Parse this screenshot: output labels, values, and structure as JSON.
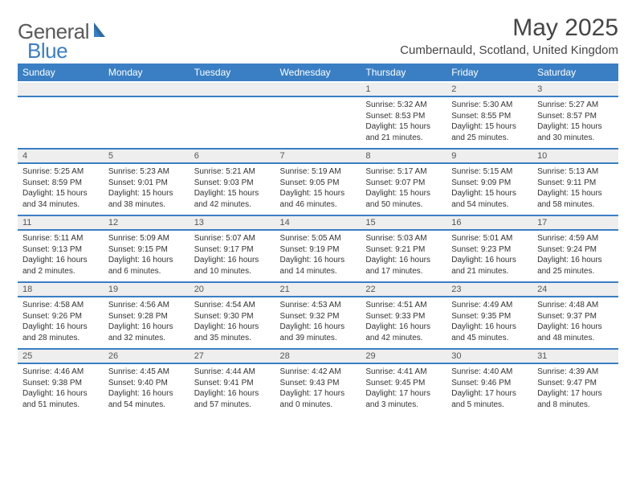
{
  "logo": {
    "text1": "General",
    "text2": "Blue"
  },
  "title": "May 2025",
  "location": "Cumbernauld, Scotland, United Kingdom",
  "colors": {
    "brand": "#3a7fc4",
    "header_bg": "#3a7fc4",
    "stripe": "#eeeeee",
    "text": "#333333",
    "title": "#454545"
  },
  "weekdays": [
    "Sunday",
    "Monday",
    "Tuesday",
    "Wednesday",
    "Thursday",
    "Friday",
    "Saturday"
  ],
  "grid": [
    [
      null,
      null,
      null,
      null,
      {
        "n": "1",
        "sr": "5:32 AM",
        "ss": "8:53 PM",
        "dl": "15 hours and 21 minutes."
      },
      {
        "n": "2",
        "sr": "5:30 AM",
        "ss": "8:55 PM",
        "dl": "15 hours and 25 minutes."
      },
      {
        "n": "3",
        "sr": "5:27 AM",
        "ss": "8:57 PM",
        "dl": "15 hours and 30 minutes."
      }
    ],
    [
      {
        "n": "4",
        "sr": "5:25 AM",
        "ss": "8:59 PM",
        "dl": "15 hours and 34 minutes."
      },
      {
        "n": "5",
        "sr": "5:23 AM",
        "ss": "9:01 PM",
        "dl": "15 hours and 38 minutes."
      },
      {
        "n": "6",
        "sr": "5:21 AM",
        "ss": "9:03 PM",
        "dl": "15 hours and 42 minutes."
      },
      {
        "n": "7",
        "sr": "5:19 AM",
        "ss": "9:05 PM",
        "dl": "15 hours and 46 minutes."
      },
      {
        "n": "8",
        "sr": "5:17 AM",
        "ss": "9:07 PM",
        "dl": "15 hours and 50 minutes."
      },
      {
        "n": "9",
        "sr": "5:15 AM",
        "ss": "9:09 PM",
        "dl": "15 hours and 54 minutes."
      },
      {
        "n": "10",
        "sr": "5:13 AM",
        "ss": "9:11 PM",
        "dl": "15 hours and 58 minutes."
      }
    ],
    [
      {
        "n": "11",
        "sr": "5:11 AM",
        "ss": "9:13 PM",
        "dl": "16 hours and 2 minutes."
      },
      {
        "n": "12",
        "sr": "5:09 AM",
        "ss": "9:15 PM",
        "dl": "16 hours and 6 minutes."
      },
      {
        "n": "13",
        "sr": "5:07 AM",
        "ss": "9:17 PM",
        "dl": "16 hours and 10 minutes."
      },
      {
        "n": "14",
        "sr": "5:05 AM",
        "ss": "9:19 PM",
        "dl": "16 hours and 14 minutes."
      },
      {
        "n": "15",
        "sr": "5:03 AM",
        "ss": "9:21 PM",
        "dl": "16 hours and 17 minutes."
      },
      {
        "n": "16",
        "sr": "5:01 AM",
        "ss": "9:23 PM",
        "dl": "16 hours and 21 minutes."
      },
      {
        "n": "17",
        "sr": "4:59 AM",
        "ss": "9:24 PM",
        "dl": "16 hours and 25 minutes."
      }
    ],
    [
      {
        "n": "18",
        "sr": "4:58 AM",
        "ss": "9:26 PM",
        "dl": "16 hours and 28 minutes."
      },
      {
        "n": "19",
        "sr": "4:56 AM",
        "ss": "9:28 PM",
        "dl": "16 hours and 32 minutes."
      },
      {
        "n": "20",
        "sr": "4:54 AM",
        "ss": "9:30 PM",
        "dl": "16 hours and 35 minutes."
      },
      {
        "n": "21",
        "sr": "4:53 AM",
        "ss": "9:32 PM",
        "dl": "16 hours and 39 minutes."
      },
      {
        "n": "22",
        "sr": "4:51 AM",
        "ss": "9:33 PM",
        "dl": "16 hours and 42 minutes."
      },
      {
        "n": "23",
        "sr": "4:49 AM",
        "ss": "9:35 PM",
        "dl": "16 hours and 45 minutes."
      },
      {
        "n": "24",
        "sr": "4:48 AM",
        "ss": "9:37 PM",
        "dl": "16 hours and 48 minutes."
      }
    ],
    [
      {
        "n": "25",
        "sr": "4:46 AM",
        "ss": "9:38 PM",
        "dl": "16 hours and 51 minutes."
      },
      {
        "n": "26",
        "sr": "4:45 AM",
        "ss": "9:40 PM",
        "dl": "16 hours and 54 minutes."
      },
      {
        "n": "27",
        "sr": "4:44 AM",
        "ss": "9:41 PM",
        "dl": "16 hours and 57 minutes."
      },
      {
        "n": "28",
        "sr": "4:42 AM",
        "ss": "9:43 PM",
        "dl": "17 hours and 0 minutes."
      },
      {
        "n": "29",
        "sr": "4:41 AM",
        "ss": "9:45 PM",
        "dl": "17 hours and 3 minutes."
      },
      {
        "n": "30",
        "sr": "4:40 AM",
        "ss": "9:46 PM",
        "dl": "17 hours and 5 minutes."
      },
      {
        "n": "31",
        "sr": "4:39 AM",
        "ss": "9:47 PM",
        "dl": "17 hours and 8 minutes."
      }
    ]
  ],
  "labels": {
    "sunrise": "Sunrise: ",
    "sunset": "Sunset: ",
    "daylight": "Daylight: "
  }
}
